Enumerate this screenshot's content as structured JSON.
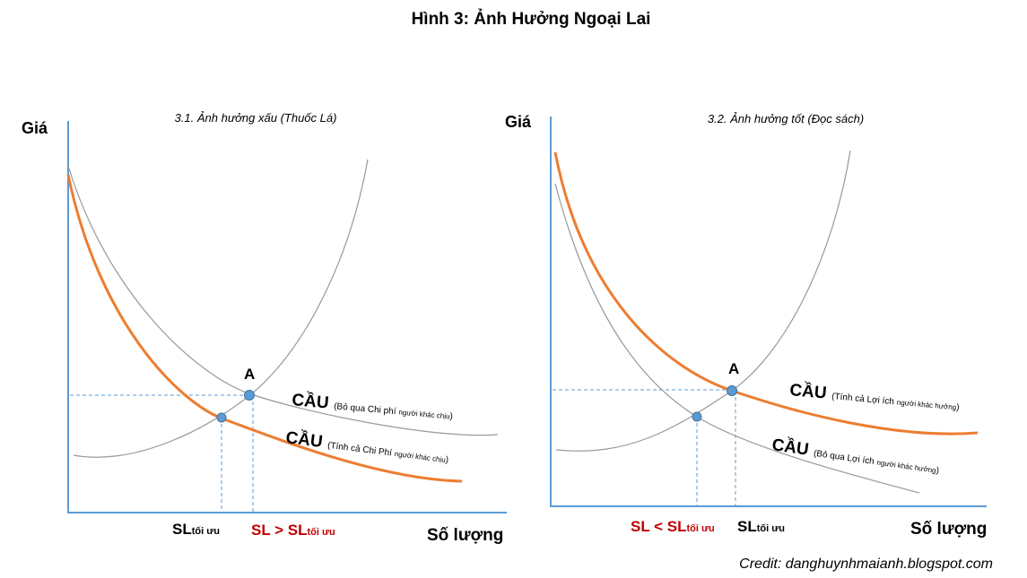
{
  "title": "Hình 3: Ảnh Hưởng Ngoại Lai",
  "panels": [
    {
      "subtitle": "3.1. Ảnh hưởng xấu (Thuốc Lá)",
      "y_label": "Giá",
      "x_label": "Số lượng",
      "point_label": "A",
      "curves": [
        {
          "main": "CẦU",
          "note": "(Bỏ qua Chi phí",
          "note_sub": "người khác chịu",
          "note_end": ")"
        },
        {
          "main": "CẦU",
          "note": "(Tính cả Chi Phí",
          "note_sub": "người khác chịu",
          "note_end": ")"
        }
      ],
      "quantities": [
        {
          "main": "SL",
          "sub": "tối ưu"
        },
        {
          "main": "SL > SL",
          "sub": "tối ưu"
        }
      ]
    },
    {
      "subtitle": "3.2. Ảnh hưởng tốt (Đọc sách)",
      "y_label": "Giá",
      "x_label": "Số lượng",
      "point_label": "A",
      "curves": [
        {
          "main": "CẦU",
          "note": "(Tính cả Lợi ích",
          "note_sub": "người khác hưởng",
          "note_end": ")"
        },
        {
          "main": "CẦU",
          "note": "(Bỏ qua Lợi ích",
          "note_sub": "người khác hưởng",
          "note_end": ")"
        }
      ],
      "quantities": [
        {
          "main": "SL < SL",
          "sub": "tối ưu"
        },
        {
          "main": "SL",
          "sub": "tối ưu"
        }
      ]
    }
  ],
  "credit": "Credit: danghuynhmaianh.blogspot.com"
}
